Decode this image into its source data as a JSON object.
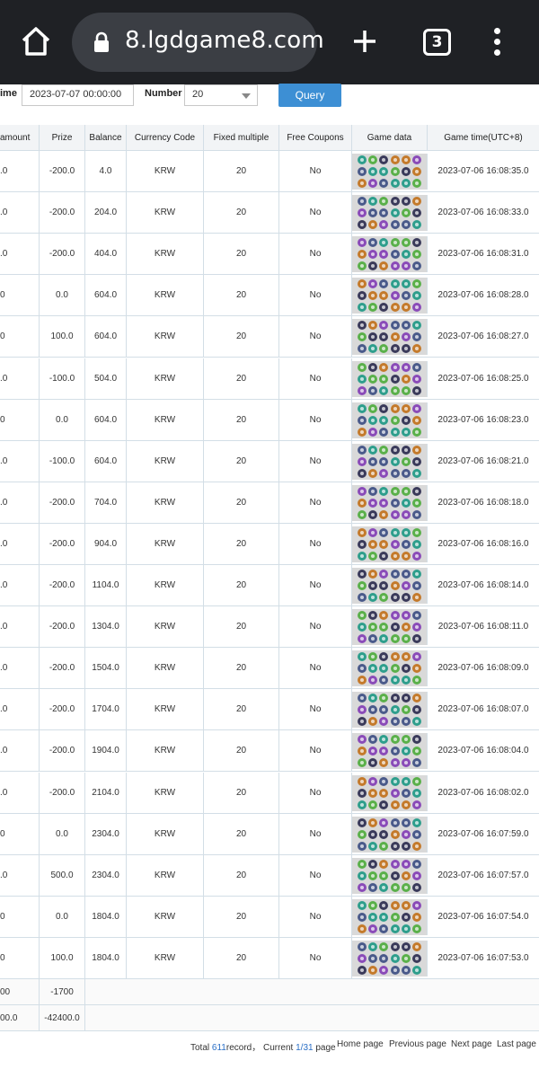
{
  "browser": {
    "url": "8.lgdgame8.com",
    "tab_count": "3",
    "icons": [
      "home-icon",
      "lock-icon",
      "plus-icon",
      "menu-dots-icon"
    ]
  },
  "filter": {
    "time_label": "ime",
    "time_value": "2023-07-07 00:00:00",
    "number_label": "Number",
    "number_value": "20",
    "query_label": "Query"
  },
  "table": {
    "headers": {
      "bet_amount": "amount",
      "prize": "Prize",
      "balance": "Balance",
      "currency": "Currency Code",
      "multiple": "Fixed multiple",
      "coupons": "Free Coupons",
      "game_data": "Game data",
      "game_time": "Game time(UTC+8)"
    },
    "rows": [
      {
        "bet": ".0",
        "prize": "-200.0",
        "balance": "4.0",
        "currency": "KRW",
        "multiple": "20",
        "coupons": "No",
        "time": "2023-07-06 16:08:35.0"
      },
      {
        "bet": ".0",
        "prize": "-200.0",
        "balance": "204.0",
        "currency": "KRW",
        "multiple": "20",
        "coupons": "No",
        "time": "2023-07-06 16:08:33.0"
      },
      {
        "bet": ".0",
        "prize": "-200.0",
        "balance": "404.0",
        "currency": "KRW",
        "multiple": "20",
        "coupons": "No",
        "time": "2023-07-06 16:08:31.0"
      },
      {
        "bet": "0",
        "prize": "0.0",
        "balance": "604.0",
        "currency": "KRW",
        "multiple": "20",
        "coupons": "No",
        "time": "2023-07-06 16:08:28.0"
      },
      {
        "bet": "0",
        "prize": "100.0",
        "balance": "604.0",
        "currency": "KRW",
        "multiple": "20",
        "coupons": "No",
        "time": "2023-07-06 16:08:27.0"
      },
      {
        "bet": ".0",
        "prize": "-100.0",
        "balance": "504.0",
        "currency": "KRW",
        "multiple": "20",
        "coupons": "No",
        "time": "2023-07-06 16:08:25.0"
      },
      {
        "bet": "0",
        "prize": "0.0",
        "balance": "604.0",
        "currency": "KRW",
        "multiple": "20",
        "coupons": "No",
        "time": "2023-07-06 16:08:23.0"
      },
      {
        "bet": ".0",
        "prize": "-100.0",
        "balance": "604.0",
        "currency": "KRW",
        "multiple": "20",
        "coupons": "No",
        "time": "2023-07-06 16:08:21.0"
      },
      {
        "bet": ".0",
        "prize": "-200.0",
        "balance": "704.0",
        "currency": "KRW",
        "multiple": "20",
        "coupons": "No",
        "time": "2023-07-06 16:08:18.0"
      },
      {
        "bet": ".0",
        "prize": "-200.0",
        "balance": "904.0",
        "currency": "KRW",
        "multiple": "20",
        "coupons": "No",
        "time": "2023-07-06 16:08:16.0"
      },
      {
        "bet": ".0",
        "prize": "-200.0",
        "balance": "1104.0",
        "currency": "KRW",
        "multiple": "20",
        "coupons": "No",
        "time": "2023-07-06 16:08:14.0"
      },
      {
        "bet": ".0",
        "prize": "-200.0",
        "balance": "1304.0",
        "currency": "KRW",
        "multiple": "20",
        "coupons": "No",
        "time": "2023-07-06 16:08:11.0"
      },
      {
        "bet": ".0",
        "prize": "-200.0",
        "balance": "1504.0",
        "currency": "KRW",
        "multiple": "20",
        "coupons": "No",
        "time": "2023-07-06 16:08:09.0"
      },
      {
        "bet": ".0",
        "prize": "-200.0",
        "balance": "1704.0",
        "currency": "KRW",
        "multiple": "20",
        "coupons": "No",
        "time": "2023-07-06 16:08:07.0"
      },
      {
        "bet": ".0",
        "prize": "-200.0",
        "balance": "1904.0",
        "currency": "KRW",
        "multiple": "20",
        "coupons": "No",
        "time": "2023-07-06 16:08:04.0"
      },
      {
        "bet": ".0",
        "prize": "-200.0",
        "balance": "2104.0",
        "currency": "KRW",
        "multiple": "20",
        "coupons": "No",
        "time": "2023-07-06 16:08:02.0"
      },
      {
        "bet": "0",
        "prize": "0.0",
        "balance": "2304.0",
        "currency": "KRW",
        "multiple": "20",
        "coupons": "No",
        "time": "2023-07-06 16:07:59.0"
      },
      {
        "bet": ".0",
        "prize": "500.0",
        "balance": "2304.0",
        "currency": "KRW",
        "multiple": "20",
        "coupons": "No",
        "time": "2023-07-06 16:07:57.0"
      },
      {
        "bet": "0",
        "prize": "0.0",
        "balance": "1804.0",
        "currency": "KRW",
        "multiple": "20",
        "coupons": "No",
        "time": "2023-07-06 16:07:54.0"
      },
      {
        "bet": "0",
        "prize": "100.0",
        "balance": "1804.0",
        "currency": "KRW",
        "multiple": "20",
        "coupons": "No",
        "time": "2023-07-06 16:07:53.0"
      }
    ],
    "subtotal": {
      "bet": "00",
      "prize": "-1700"
    },
    "total": {
      "bet": "00.0",
      "prize": "-42400.0"
    }
  },
  "symbol_colors": [
    "#2e9e8c",
    "#4a5a8a",
    "#8a4bb8",
    "#c47a2b",
    "#3a3a5a",
    "#5ab04a"
  ],
  "footer": {
    "total_prefix": "Total ",
    "total_count": "611",
    "total_suffix": "record， Current ",
    "page_current": "1/31",
    "page_suffix": " page",
    "home_page": "Home page",
    "previous_page": "Previous page",
    "next_page": "Next page",
    "last_page": "Last page"
  }
}
